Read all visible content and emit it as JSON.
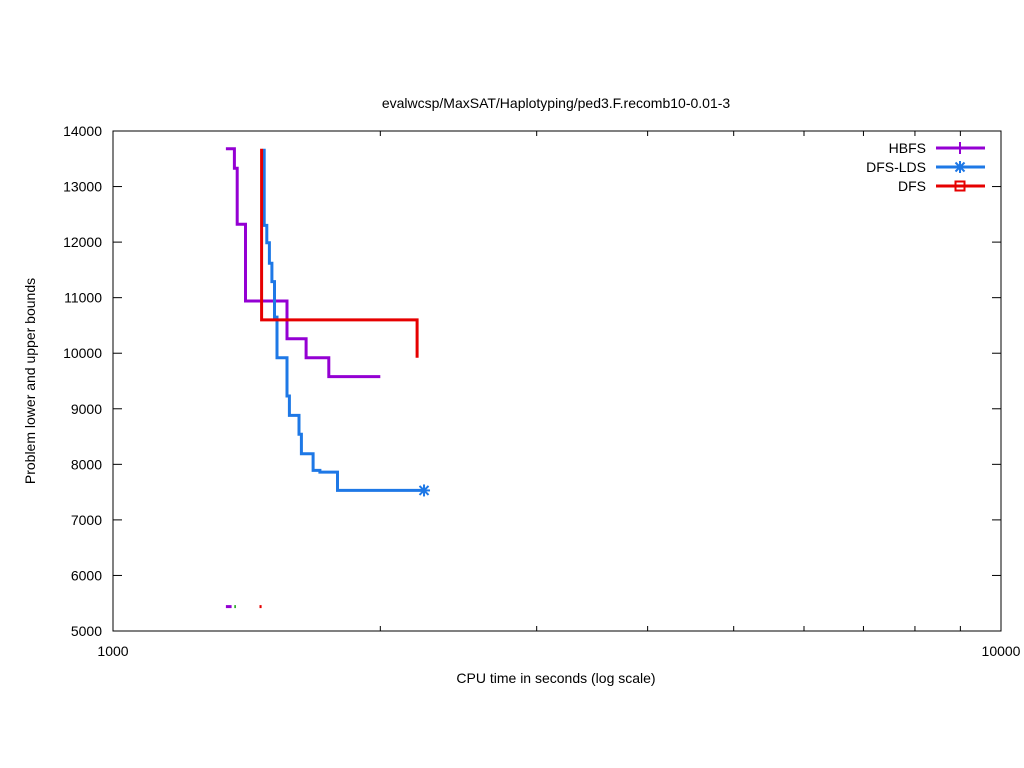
{
  "chart_data": {
    "type": "line",
    "title": "evalwcsp/MaxSAT/Haplotyping/ped3.F.recomb10-0.01-3",
    "xlabel": "CPU time in seconds (log scale)",
    "ylabel": "Problem lower and upper bounds",
    "xscale": "log",
    "xlim": [
      1000,
      10000
    ],
    "ylim": [
      5000,
      14000
    ],
    "xticks": [
      1000,
      10000
    ],
    "xtick_labels": [
      "1000",
      "10000"
    ],
    "xminor_ticks": [
      2000,
      3000,
      4000,
      5000,
      6000,
      7000,
      8000,
      9000
    ],
    "yticks": [
      5000,
      6000,
      7000,
      8000,
      9000,
      10000,
      11000,
      12000,
      13000,
      14000
    ],
    "ytick_labels": [
      "5000",
      "6000",
      "7000",
      "8000",
      "9000",
      "10000",
      "11000",
      "12000",
      "13000",
      "14000"
    ],
    "grid": false,
    "legend_position": "top-right",
    "series": [
      {
        "name": "HBFS",
        "color": "#9400d3",
        "marker": "plus",
        "points": [
          [
            1340,
            13680
          ],
          [
            1370,
            13680
          ],
          [
            1370,
            13330
          ],
          [
            1380,
            13330
          ],
          [
            1380,
            12320
          ],
          [
            1410,
            12320
          ],
          [
            1410,
            10940
          ],
          [
            1570,
            10940
          ],
          [
            1570,
            10260
          ],
          [
            1650,
            10260
          ],
          [
            1650,
            9920
          ],
          [
            1750,
            9920
          ],
          [
            1750,
            9580
          ],
          [
            2000,
            9580
          ]
        ],
        "lower_bound": [
          [
            1340,
            5440
          ],
          [
            1360,
            5440
          ]
        ]
      },
      {
        "name": "DFS-LDS",
        "color": "#1e78e6",
        "marker": "star",
        "points": [
          [
            1480,
            13680
          ],
          [
            1480,
            12300
          ],
          [
            1490,
            12300
          ],
          [
            1490,
            11990
          ],
          [
            1500,
            11990
          ],
          [
            1500,
            11620
          ],
          [
            1510,
            11620
          ],
          [
            1510,
            11290
          ],
          [
            1520,
            11290
          ],
          [
            1520,
            10650
          ],
          [
            1530,
            10650
          ],
          [
            1530,
            9920
          ],
          [
            1570,
            9920
          ],
          [
            1570,
            9230
          ],
          [
            1580,
            9230
          ],
          [
            1580,
            8880
          ],
          [
            1620,
            8880
          ],
          [
            1620,
            8540
          ],
          [
            1630,
            8540
          ],
          [
            1630,
            8190
          ],
          [
            1680,
            8190
          ],
          [
            1680,
            7890
          ],
          [
            1710,
            7890
          ],
          [
            1710,
            7860
          ],
          [
            1790,
            7860
          ],
          [
            1790,
            7530
          ],
          [
            2240,
            7530
          ]
        ],
        "end_marker": [
          2240,
          7530
        ]
      },
      {
        "name": "DFS",
        "color": "#e60000",
        "marker": "square",
        "points": [
          [
            1470,
            13680
          ],
          [
            1470,
            10600
          ],
          [
            2200,
            10600
          ],
          [
            2200,
            9920
          ]
        ],
        "lower_bound": [
          [
            1462,
            5440
          ],
          [
            1470,
            5440
          ]
        ]
      }
    ],
    "extra_lower_bound": {
      "color": "#009900",
      "points": [
        [
          1370,
          5440
        ],
        [
          1375,
          5440
        ]
      ]
    }
  }
}
